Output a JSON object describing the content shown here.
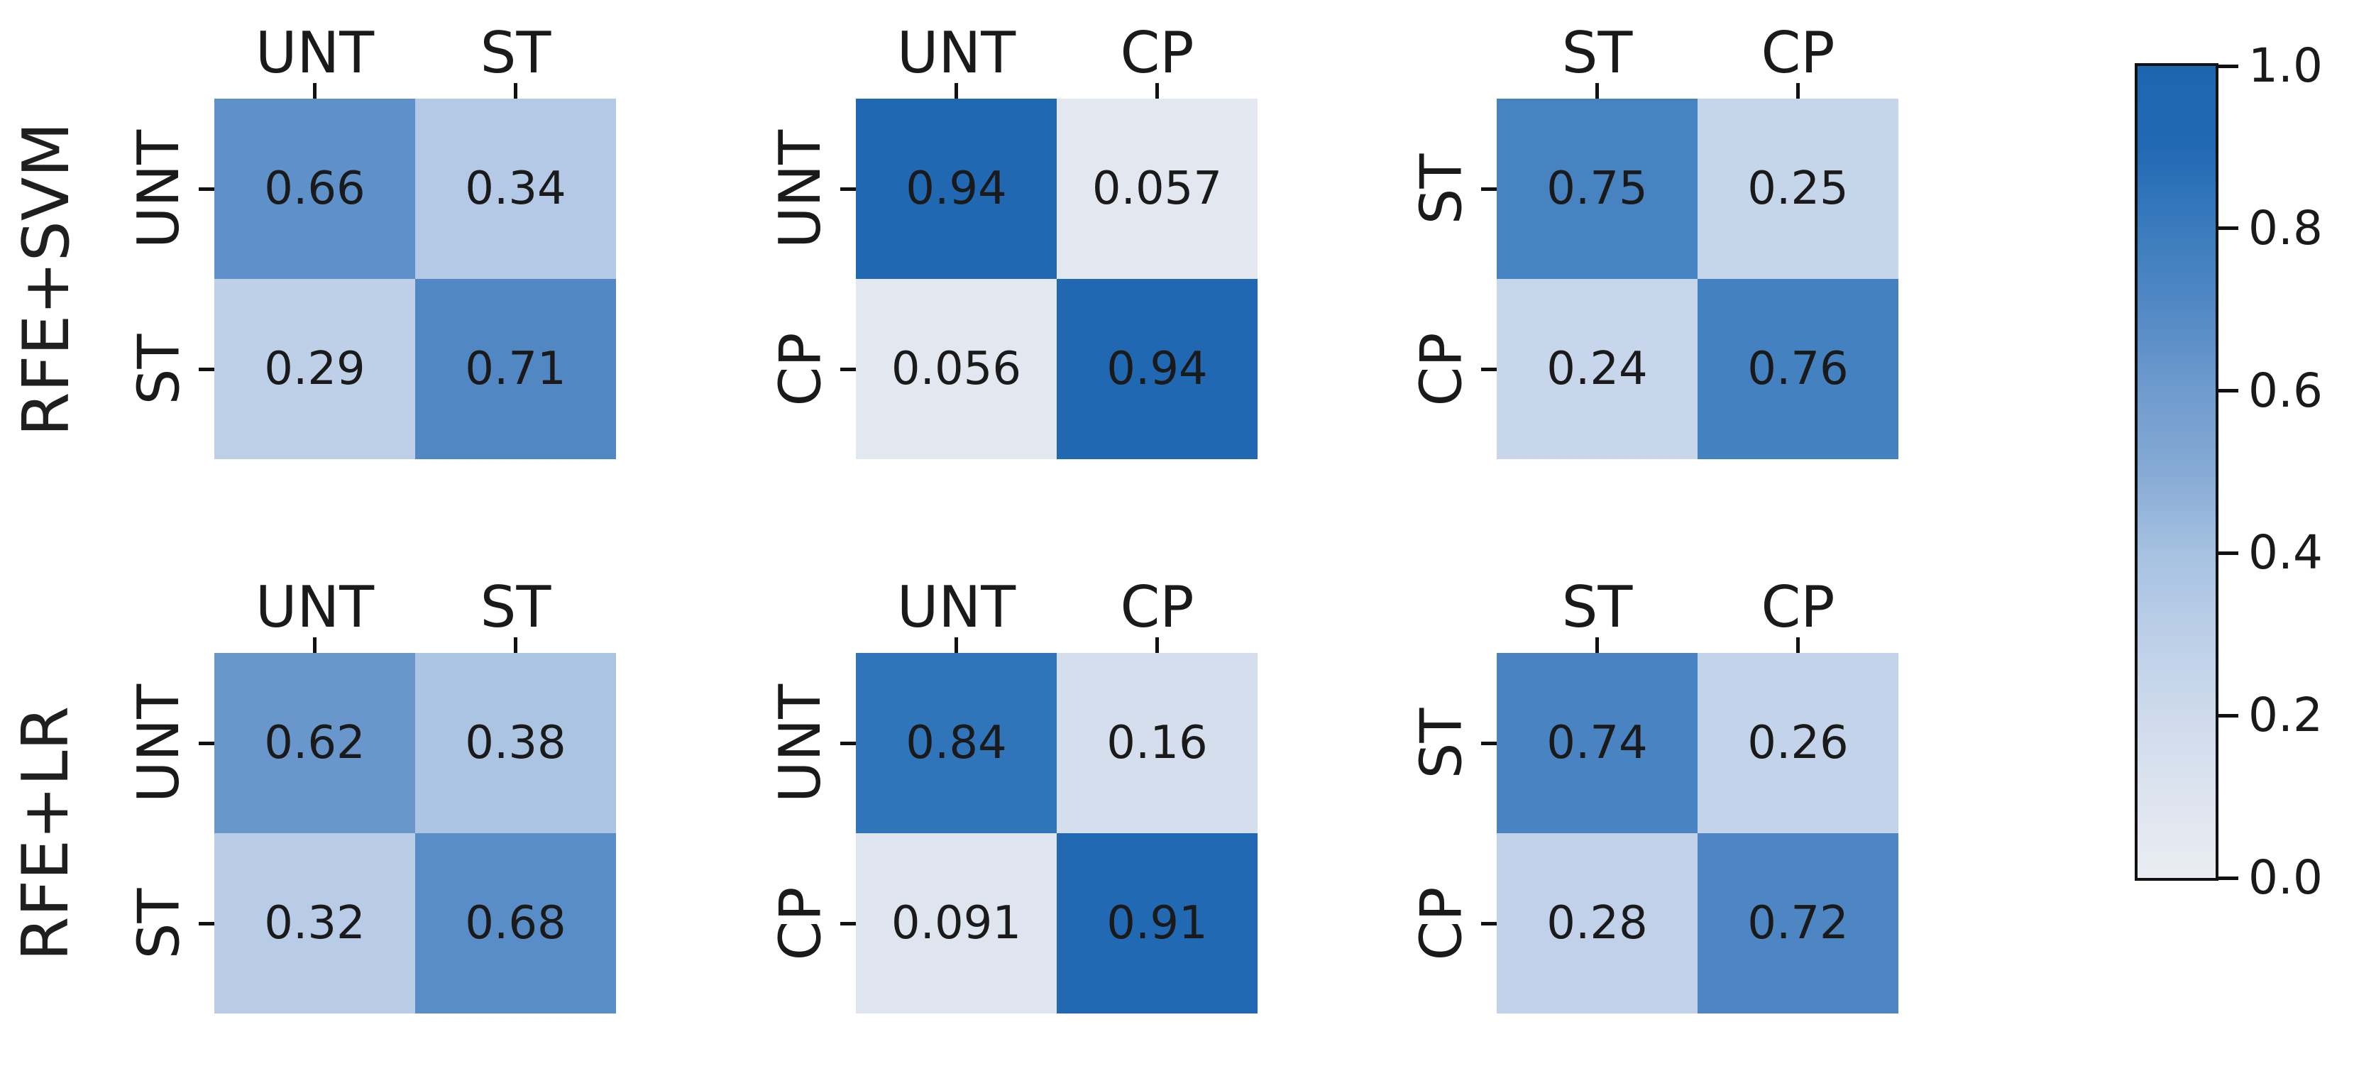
{
  "meta": {
    "background_color": "#ffffff",
    "text_color": "#1a1a1a",
    "tick_color": "#111111",
    "accent_blue": "#1c66b0"
  },
  "chart_data": {
    "type": "heatmap",
    "description": "Grid of six 2x2 normalized confusion matrices: rows are models (RFE+SVM, RFE+LR), columns are class pairs (UNT vs ST, UNT vs CP, ST vs CP), shared Blues colorbar from 0.0 to 1.0",
    "vmin": 0.0,
    "vmax": 1.0,
    "grid": "off",
    "row_labels": [
      "RFE+SVM",
      "RFE+LR"
    ],
    "colormap": {
      "name": "Blues",
      "stops": [
        {
          "v": 0.0,
          "c": "#eaecf2"
        },
        {
          "v": 0.1,
          "c": "#dde4ef"
        },
        {
          "v": 0.2,
          "c": "#cedaec"
        },
        {
          "v": 0.3,
          "c": "#bccfe8"
        },
        {
          "v": 0.4,
          "c": "#a6c1e1"
        },
        {
          "v": 0.5,
          "c": "#86aad5"
        },
        {
          "v": 0.6,
          "c": "#6f9bce"
        },
        {
          "v": 0.7,
          "c": "#5389c5"
        },
        {
          "v": 0.8,
          "c": "#3a7bbd"
        },
        {
          "v": 0.9,
          "c": "#2269b3"
        },
        {
          "v": 1.0,
          "c": "#1c66b0"
        }
      ]
    },
    "colorbar": {
      "position": "right",
      "tick_labels": [
        "1.0",
        "0.8",
        "0.6",
        "0.4",
        "0.2",
        "0.0"
      ],
      "tick_values": [
        1.0,
        0.8,
        0.6,
        0.4,
        0.2,
        0.0
      ]
    },
    "matrices": [
      {
        "model": "RFE+SVM",
        "x_labels": [
          "UNT",
          "ST"
        ],
        "y_labels": [
          "UNT",
          "ST"
        ],
        "values": [
          [
            0.66,
            0.34
          ],
          [
            0.29,
            0.71
          ]
        ],
        "cell_text": [
          [
            "0.66",
            "0.34"
          ],
          [
            "0.29",
            "0.71"
          ]
        ]
      },
      {
        "model": "RFE+SVM",
        "x_labels": [
          "UNT",
          "CP"
        ],
        "y_labels": [
          "UNT",
          "CP"
        ],
        "values": [
          [
            0.94,
            0.057
          ],
          [
            0.056,
            0.94
          ]
        ],
        "cell_text": [
          [
            "0.94",
            "0.057"
          ],
          [
            "0.056",
            "0.94"
          ]
        ]
      },
      {
        "model": "RFE+SVM",
        "x_labels": [
          "ST",
          "CP"
        ],
        "y_labels": [
          "ST",
          "CP"
        ],
        "values": [
          [
            0.75,
            0.25
          ],
          [
            0.24,
            0.76
          ]
        ],
        "cell_text": [
          [
            "0.75",
            "0.25"
          ],
          [
            "0.24",
            "0.76"
          ]
        ]
      },
      {
        "model": "RFE+LR",
        "x_labels": [
          "UNT",
          "ST"
        ],
        "y_labels": [
          "UNT",
          "ST"
        ],
        "values": [
          [
            0.62,
            0.38
          ],
          [
            0.32,
            0.68
          ]
        ],
        "cell_text": [
          [
            "0.62",
            "0.38"
          ],
          [
            "0.32",
            "0.68"
          ]
        ]
      },
      {
        "model": "RFE+LR",
        "x_labels": [
          "UNT",
          "CP"
        ],
        "y_labels": [
          "UNT",
          "CP"
        ],
        "values": [
          [
            0.84,
            0.16
          ],
          [
            0.091,
            0.91
          ]
        ],
        "cell_text": [
          [
            "0.84",
            "0.16"
          ],
          [
            "0.091",
            "0.91"
          ]
        ]
      },
      {
        "model": "RFE+LR",
        "x_labels": [
          "ST",
          "CP"
        ],
        "y_labels": [
          "ST",
          "CP"
        ],
        "values": [
          [
            0.74,
            0.26
          ],
          [
            0.28,
            0.72
          ]
        ],
        "cell_text": [
          [
            "0.74",
            "0.26"
          ],
          [
            "0.28",
            "0.72"
          ]
        ]
      }
    ]
  }
}
